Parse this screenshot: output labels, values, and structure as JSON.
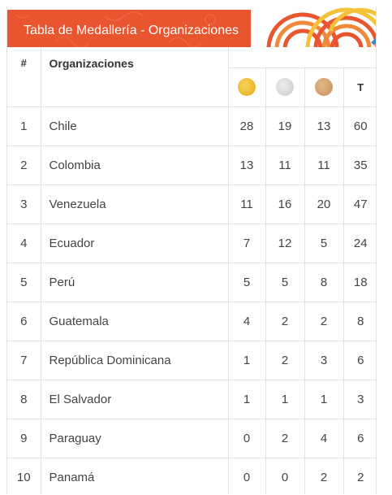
{
  "banner": {
    "title": "Tabla de Medallería - Organizaciones"
  },
  "table": {
    "headers": {
      "rank": "#",
      "organization": "Organizaciones",
      "total": "T"
    },
    "medals": [
      {
        "name": "gold-medal-icon",
        "color": "#e9b72b"
      },
      {
        "name": "silver-medal-icon",
        "color": "#d6d6d6"
      },
      {
        "name": "bronze-medal-icon",
        "color": "#d2a06e"
      }
    ],
    "rows": [
      {
        "rank": "1",
        "organization": "Chile",
        "gold": "28",
        "silver": "19",
        "bronze": "13",
        "total": "60"
      },
      {
        "rank": "2",
        "organization": "Colombia",
        "gold": "13",
        "silver": "11",
        "bronze": "11",
        "total": "35"
      },
      {
        "rank": "3",
        "organization": "Venezuela",
        "gold": "11",
        "silver": "16",
        "bronze": "20",
        "total": "47"
      },
      {
        "rank": "4",
        "organization": "Ecuador",
        "gold": "7",
        "silver": "12",
        "bronze": "5",
        "total": "24"
      },
      {
        "rank": "5",
        "organization": "Perú",
        "gold": "5",
        "silver": "5",
        "bronze": "8",
        "total": "18"
      },
      {
        "rank": "6",
        "organization": "Guatemala",
        "gold": "4",
        "silver": "2",
        "bronze": "2",
        "total": "8"
      },
      {
        "rank": "7",
        "organization": "República Dominicana",
        "gold": "1",
        "silver": "2",
        "bronze": "3",
        "total": "6"
      },
      {
        "rank": "8",
        "organization": "El Salvador",
        "gold": "1",
        "silver": "1",
        "bronze": "1",
        "total": "3"
      },
      {
        "rank": "9",
        "organization": "Paraguay",
        "gold": "0",
        "silver": "2",
        "bronze": "4",
        "total": "6"
      },
      {
        "rank": "10",
        "organization": "Panamá",
        "gold": "0",
        "silver": "0",
        "bronze": "2",
        "total": "2"
      }
    ]
  },
  "colors": {
    "banner": "#e8552f",
    "border": "#e4e4e4"
  }
}
